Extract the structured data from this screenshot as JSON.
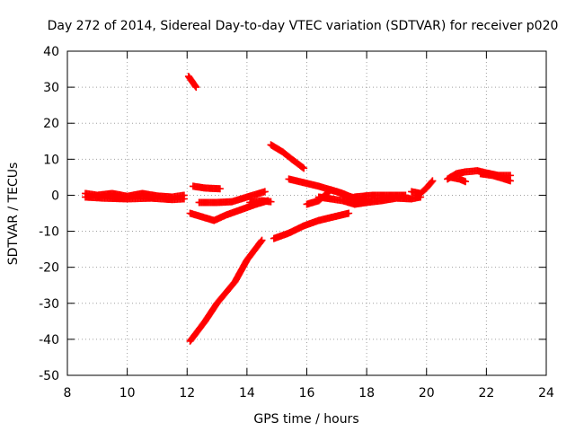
{
  "chart_data": {
    "type": "scatter",
    "title": "Day 272 of 2014, Sidereal Day-to-day VTEC variation (SDTVAR) for receiver p020",
    "xlabel": "GPS time / hours",
    "ylabel": "SDTVAR / TECUs",
    "xlim": [
      8,
      24
    ],
    "ylim": [
      -50,
      40
    ],
    "xticks": [
      "8",
      "10",
      "12",
      "14",
      "16",
      "18",
      "20",
      "22",
      "24"
    ],
    "yticks": [
      "40",
      "30",
      "20",
      "10",
      "0",
      "-10",
      "-20",
      "-30",
      "-40",
      "-50"
    ],
    "grid": true,
    "legend": "none",
    "marker": "plus",
    "color": "#ff0000",
    "series": [
      {
        "values": [
          [
            [
              8.6,
              0.5
            ],
            [
              9.0,
              0.0
            ],
            [
              9.5,
              0.5
            ],
            [
              10.0,
              -0.3
            ],
            [
              10.5,
              0.5
            ],
            [
              11.0,
              -0.2
            ],
            [
              11.5,
              -0.5
            ],
            [
              11.9,
              0.0
            ]
          ],
          [
            [
              8.6,
              -0.5
            ],
            [
              9.2,
              -0.8
            ],
            [
              10.0,
              -1.0
            ],
            [
              10.8,
              -0.8
            ],
            [
              11.5,
              -1.2
            ],
            [
              11.9,
              -1.0
            ]
          ],
          [
            [
              12.05,
              33.0
            ],
            [
              12.3,
              30.0
            ]
          ],
          [
            [
              12.2,
              2.5
            ],
            [
              12.6,
              2.0
            ],
            [
              13.1,
              1.8
            ]
          ],
          [
            [
              12.4,
              -2.0
            ],
            [
              13.0,
              -2.0
            ],
            [
              13.5,
              -1.8
            ],
            [
              14.0,
              -0.5
            ],
            [
              14.6,
              1.0
            ]
          ],
          [
            [
              12.1,
              -5.0
            ],
            [
              12.5,
              -6.0
            ],
            [
              12.9,
              -7.0
            ],
            [
              13.3,
              -5.5
            ],
            [
              13.8,
              -4.0
            ],
            [
              14.3,
              -2.5
            ],
            [
              14.7,
              -1.5
            ]
          ],
          [
            [
              14.1,
              -2.0
            ],
            [
              14.5,
              -1.5
            ],
            [
              14.8,
              -1.8
            ]
          ],
          [
            [
              12.1,
              -40.5
            ],
            [
              12.6,
              -35.0
            ],
            [
              13.0,
              -30.0
            ],
            [
              13.6,
              -24.0
            ],
            [
              14.0,
              -18.0
            ],
            [
              14.5,
              -12.5
            ]
          ],
          [
            [
              14.8,
              14.0
            ],
            [
              15.2,
              12.0
            ],
            [
              15.5,
              10.0
            ],
            [
              15.9,
              7.5
            ]
          ],
          [
            [
              14.9,
              -12.0
            ],
            [
              15.4,
              -10.5
            ],
            [
              15.9,
              -8.5
            ],
            [
              16.4,
              -7.0
            ],
            [
              16.9,
              -6.0
            ],
            [
              17.4,
              -5.0
            ]
          ],
          [
            [
              15.4,
              4.5
            ],
            [
              15.9,
              3.5
            ],
            [
              16.4,
              2.5
            ],
            [
              17.0,
              1.0
            ],
            [
              17.5,
              -0.5
            ],
            [
              18.0,
              -1.5
            ]
          ],
          [
            [
              16.0,
              -2.5
            ],
            [
              16.4,
              -1.5
            ],
            [
              16.8,
              1.5
            ],
            [
              17.2,
              0.5
            ],
            [
              17.6,
              -1.0
            ]
          ],
          [
            [
              16.4,
              -0.5
            ],
            [
              16.8,
              -1.0
            ],
            [
              17.2,
              -1.5
            ],
            [
              17.6,
              -2.5
            ],
            [
              18.0,
              -2.0
            ],
            [
              18.5,
              -1.5
            ],
            [
              19.0,
              -0.8
            ],
            [
              19.5,
              -1.0
            ],
            [
              19.8,
              -0.5
            ]
          ],
          [
            [
              17.6,
              -0.5
            ],
            [
              18.2,
              0.0
            ],
            [
              18.8,
              0.0
            ],
            [
              19.3,
              0.0
            ]
          ],
          [
            [
              19.5,
              1.0
            ],
            [
              19.8,
              0.5
            ],
            [
              20.0,
              2.0
            ],
            [
              20.2,
              4.0
            ]
          ],
          [
            [
              20.7,
              4.5
            ],
            [
              21.0,
              6.0
            ],
            [
              21.3,
              6.5
            ],
            [
              21.7,
              6.8
            ],
            [
              22.0,
              6.2
            ],
            [
              22.4,
              5.5
            ],
            [
              22.8,
              5.5
            ]
          ],
          [
            [
              20.8,
              5.0
            ],
            [
              21.1,
              4.5
            ],
            [
              21.3,
              3.8
            ]
          ],
          [
            [
              21.8,
              6.0
            ],
            [
              22.2,
              5.5
            ],
            [
              22.5,
              4.8
            ],
            [
              22.8,
              4.0
            ]
          ]
        ]
      }
    ]
  }
}
